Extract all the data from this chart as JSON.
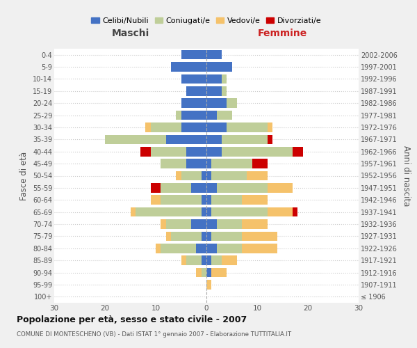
{
  "age_groups": [
    "100+",
    "95-99",
    "90-94",
    "85-89",
    "80-84",
    "75-79",
    "70-74",
    "65-69",
    "60-64",
    "55-59",
    "50-54",
    "45-49",
    "40-44",
    "35-39",
    "30-34",
    "25-29",
    "20-24",
    "15-19",
    "10-14",
    "5-9",
    "0-4"
  ],
  "birth_years": [
    "≤ 1906",
    "1907-1911",
    "1912-1916",
    "1917-1921",
    "1922-1926",
    "1927-1931",
    "1932-1936",
    "1937-1941",
    "1942-1946",
    "1947-1951",
    "1952-1956",
    "1957-1961",
    "1962-1966",
    "1967-1971",
    "1972-1976",
    "1977-1981",
    "1982-1986",
    "1987-1991",
    "1992-1996",
    "1997-2001",
    "2002-2006"
  ],
  "maschi": {
    "celibi": [
      0,
      0,
      0,
      1,
      2,
      1,
      3,
      1,
      1,
      3,
      1,
      4,
      4,
      8,
      5,
      5,
      5,
      4,
      5,
      7,
      5
    ],
    "coniugati": [
      0,
      0,
      1,
      3,
      7,
      6,
      5,
      13,
      8,
      6,
      4,
      5,
      7,
      12,
      6,
      1,
      0,
      0,
      0,
      0,
      0
    ],
    "vedovi": [
      0,
      0,
      1,
      1,
      1,
      1,
      1,
      1,
      2,
      0,
      1,
      0,
      0,
      0,
      1,
      0,
      0,
      0,
      0,
      0,
      0
    ],
    "divorziati": [
      0,
      0,
      0,
      0,
      0,
      0,
      0,
      0,
      0,
      2,
      0,
      0,
      2,
      0,
      0,
      0,
      0,
      0,
      0,
      0,
      0
    ]
  },
  "femmine": {
    "celibi": [
      0,
      0,
      1,
      1,
      2,
      1,
      2,
      1,
      1,
      2,
      1,
      1,
      3,
      3,
      4,
      2,
      4,
      3,
      3,
      5,
      3
    ],
    "coniugati": [
      0,
      0,
      0,
      2,
      5,
      6,
      5,
      11,
      6,
      10,
      7,
      8,
      14,
      9,
      8,
      3,
      2,
      1,
      1,
      0,
      0
    ],
    "vedovi": [
      0,
      1,
      3,
      3,
      7,
      7,
      5,
      5,
      5,
      5,
      4,
      0,
      0,
      0,
      1,
      0,
      0,
      0,
      0,
      0,
      0
    ],
    "divorziati": [
      0,
      0,
      0,
      0,
      0,
      0,
      0,
      1,
      0,
      0,
      0,
      3,
      2,
      1,
      0,
      0,
      0,
      0,
      0,
      0,
      0
    ]
  },
  "colors": {
    "celibi": "#4472C4",
    "coniugati": "#BFCE99",
    "vedovi": "#F5C26B",
    "divorziati": "#CC0000"
  },
  "legend_labels": [
    "Celibi/Nubili",
    "Coniugati/e",
    "Vedovi/e",
    "Divorziati/e"
  ],
  "xlim": 30,
  "xlabel_left": "Maschi",
  "xlabel_right": "Femmine",
  "ylabel_left": "Fasce di età",
  "ylabel_right": "Anni di nascita",
  "title": "Popolazione per età, sesso e stato civile - 2007",
  "subtitle": "COMUNE DI MONTESCHENO (VB) - Dati ISTAT 1° gennaio 2007 - Elaborazione TUTTITALIA.IT",
  "bg_color": "#f0f0f0",
  "plot_bg": "#ffffff",
  "grid_color": "#cccccc"
}
